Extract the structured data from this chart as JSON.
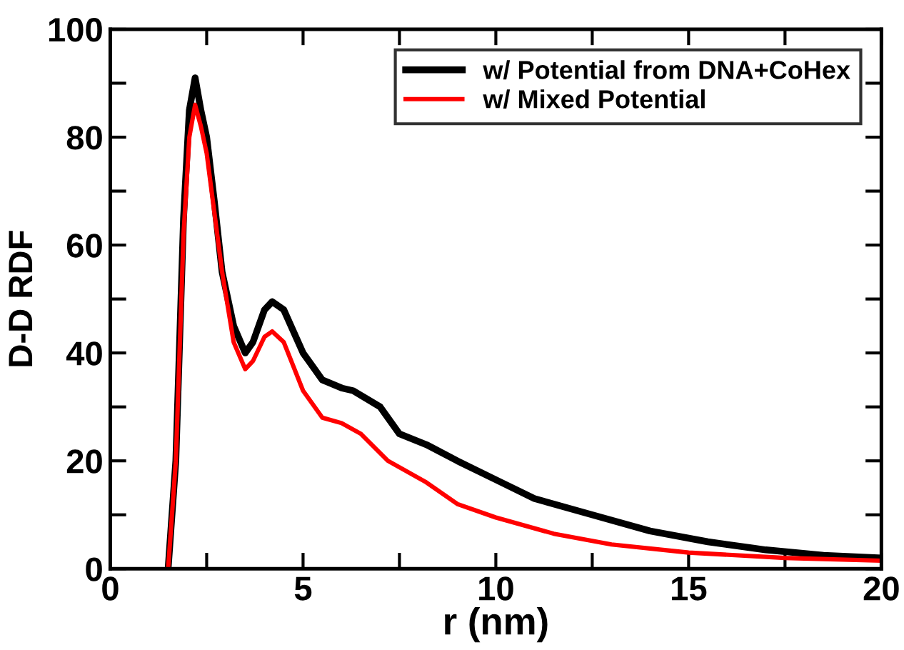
{
  "chart_data": {
    "type": "line",
    "xlabel": "r (nm)",
    "ylabel": "D-D RDF",
    "xlim": [
      0,
      20
    ],
    "ylim": [
      0,
      100
    ],
    "xticks": [
      0,
      {
        "value": 2.5,
        "label": null
      },
      5,
      {
        "value": 7.5,
        "label": null
      },
      10,
      {
        "value": 12.5,
        "label": null
      },
      15,
      {
        "value": 17.5,
        "label": null
      },
      20
    ],
    "yticks": [
      0,
      {
        "value": 10,
        "label": null
      },
      20,
      {
        "value": 30,
        "label": null
      },
      40,
      {
        "value": 50,
        "label": null
      },
      60,
      {
        "value": 70,
        "label": null
      },
      80,
      {
        "value": 90,
        "label": null
      },
      100
    ],
    "grid": false,
    "legend": "top right",
    "marker": "none",
    "line_style": "solid",
    "series": [
      {
        "name": "w/ Potential from DNA+CoHex",
        "color": "#000000",
        "x": [
          1.5,
          1.7,
          1.9,
          2.05,
          2.2,
          2.35,
          2.5,
          2.7,
          2.9,
          3.2,
          3.5,
          3.7,
          4.0,
          4.2,
          4.5,
          5.0,
          5.5,
          6.0,
          6.3,
          7.0,
          7.5,
          8.2,
          9.0,
          10,
          11,
          12.5,
          14,
          15.5,
          17,
          18.5,
          20
        ],
        "values": [
          0,
          20,
          65,
          85,
          91,
          85,
          80,
          68,
          55,
          45,
          40,
          42,
          48,
          49.5,
          48,
          40,
          35,
          33.5,
          33,
          30,
          25,
          23,
          20,
          16.5,
          13,
          10,
          7,
          5,
          3.5,
          2.5,
          2
        ]
      },
      {
        "name": "w/ Mixed Potential",
        "color": "#ff0000",
        "x": [
          1.5,
          1.7,
          1.9,
          2.05,
          2.2,
          2.35,
          2.5,
          2.7,
          2.9,
          3.2,
          3.5,
          3.7,
          4.0,
          4.2,
          4.5,
          5.0,
          5.5,
          6.0,
          6.5,
          7.2,
          8.2,
          9.0,
          10,
          11.5,
          13,
          15,
          17.5,
          20
        ],
        "values": [
          0,
          20,
          62,
          80,
          86,
          82,
          77,
          66,
          55,
          42,
          37,
          38.5,
          43,
          44,
          42,
          33,
          28,
          27,
          25,
          20,
          16,
          12,
          9.5,
          6.5,
          4.5,
          3,
          2,
          1.5
        ]
      }
    ]
  }
}
